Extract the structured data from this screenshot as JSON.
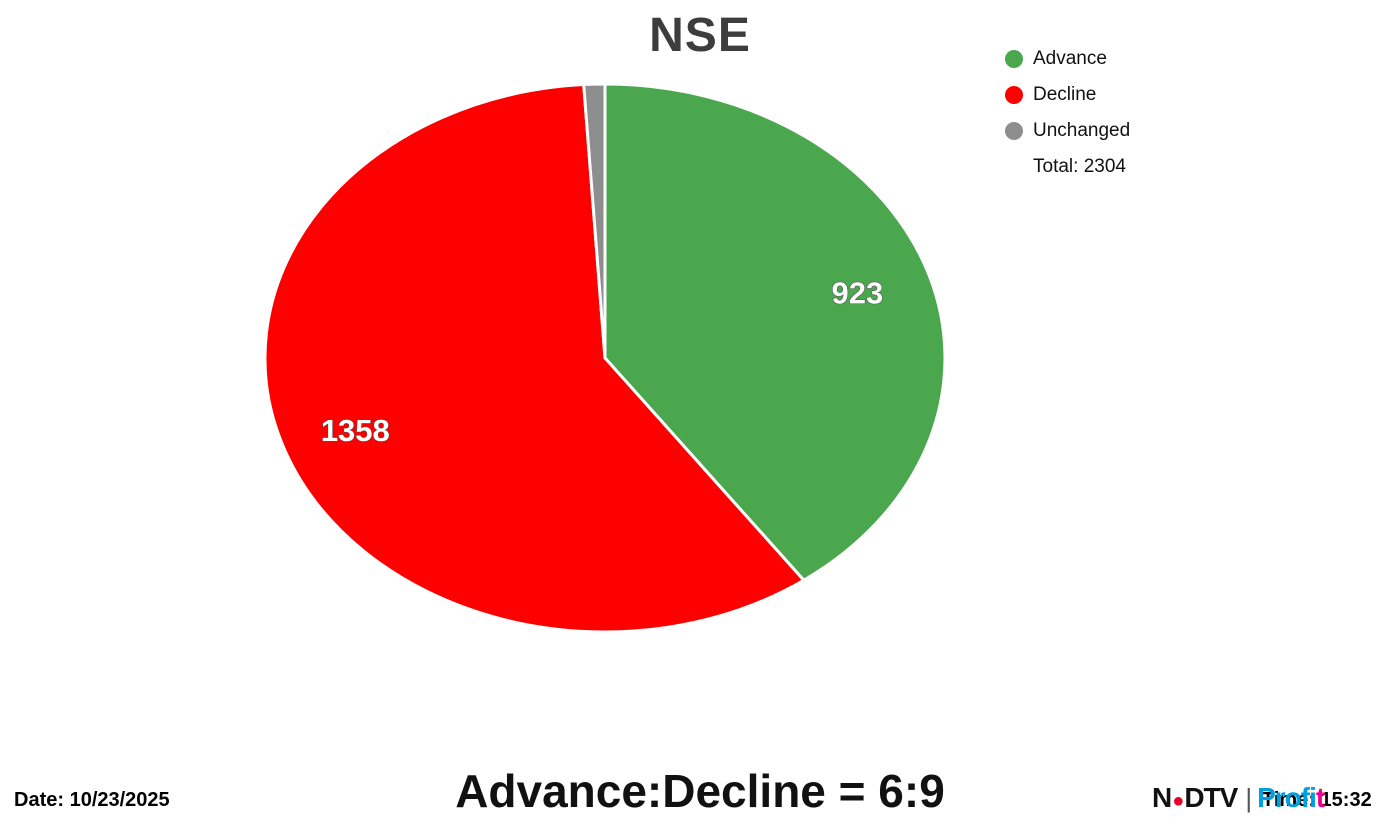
{
  "chart_data": {
    "type": "pie",
    "title": "NSE",
    "labels": [
      "Advance",
      "Decline",
      "Unchanged"
    ],
    "values": [
      923,
      1358,
      23
    ],
    "colors": [
      "#4aa74e",
      "#fe0000",
      "#8e8e8e"
    ],
    "data_labels": [
      "923",
      "1358",
      ""
    ],
    "total": 2304,
    "start_angle_deg": 90,
    "direction": "clockwise",
    "legend_position": "top-right",
    "grid": false
  },
  "legend": {
    "items": [
      {
        "label": "Advance",
        "color": "#4aa74e"
      },
      {
        "label": "Decline",
        "color": "#fe0000"
      },
      {
        "label": "Unchanged",
        "color": "#8e8e8e"
      }
    ],
    "total_label": "Total: 2304"
  },
  "footer": {
    "date_label": "Date: 10/23/2025",
    "ratio_label": "Advance:Decline = 6:9",
    "time_label": "Time: 15:32"
  },
  "logo": {
    "ndtv": "N",
    "dot": "●",
    "ndtv_rest": "DTV",
    "separator": "|",
    "profit_main": "Profi",
    "profit_last": "t"
  }
}
